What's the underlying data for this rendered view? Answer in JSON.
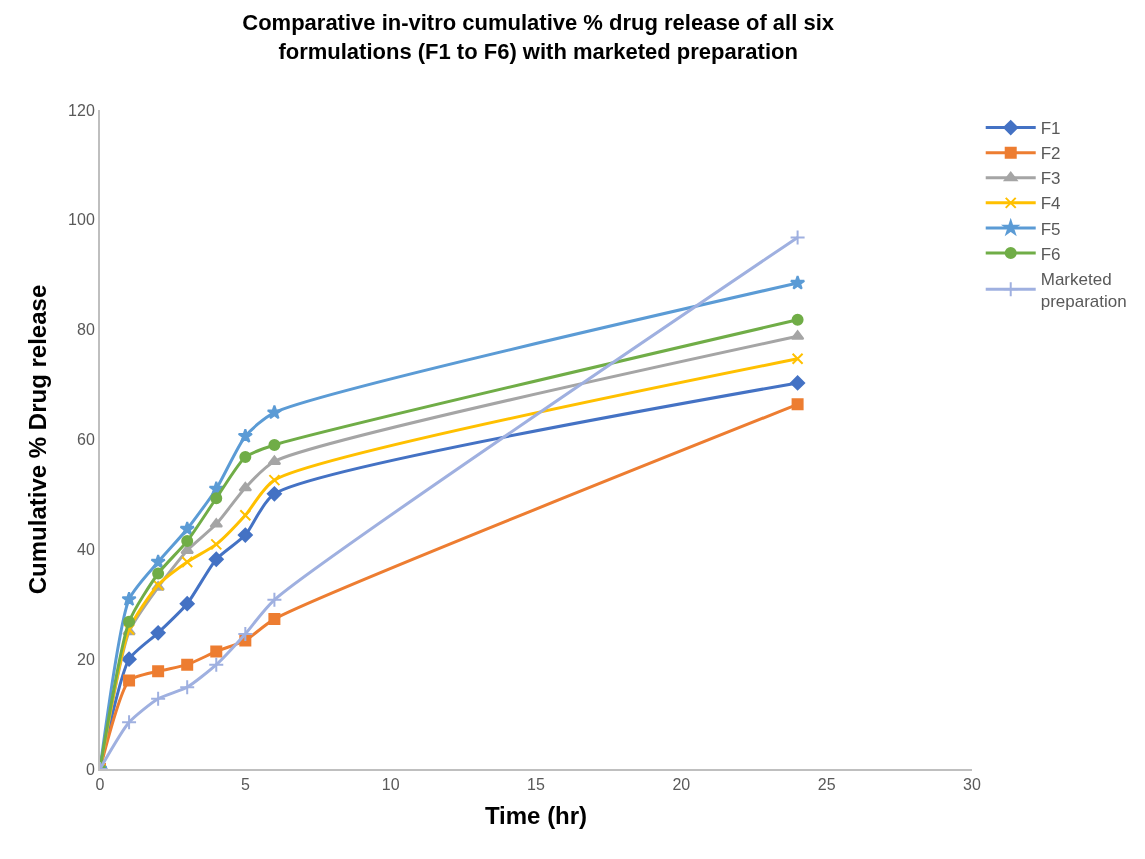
{
  "chart_data": {
    "type": "line",
    "title": "Comparative in-vitro cumulative % drug release of all six formulations (F1 to F6) with marketed preparation",
    "xlabel": "Time (hr)",
    "ylabel": "Cumulative % Drug release",
    "x": [
      0,
      1,
      2,
      3,
      4,
      5,
      6,
      24
    ],
    "series": [
      {
        "name": "F1",
        "color": "#4472c4",
        "marker": "diamond",
        "values": [
          0,
          20.0,
          24.8,
          30.1,
          38.2,
          42.6,
          50.1,
          70.3
        ]
      },
      {
        "name": "F2",
        "color": "#ed7d31",
        "marker": "square",
        "values": [
          0,
          16.1,
          17.8,
          19.0,
          21.4,
          23.4,
          27.3,
          66.4
        ]
      },
      {
        "name": "F3",
        "color": "#a5a5a5",
        "marker": "triangle",
        "values": [
          0,
          25.0,
          33.1,
          39.8,
          44.6,
          51.2,
          56.0,
          78.8
        ]
      },
      {
        "name": "F4",
        "color": "#ffc000",
        "marker": "x",
        "values": [
          0,
          25.4,
          33.5,
          37.7,
          40.9,
          46.2,
          52.6,
          74.7
        ]
      },
      {
        "name": "F5",
        "color": "#5b9bd5",
        "marker": "star",
        "values": [
          0,
          30.9,
          37.7,
          43.7,
          51.0,
          60.6,
          64.9,
          88.5
        ]
      },
      {
        "name": "F6",
        "color": "#70ad47",
        "marker": "circle",
        "values": [
          0,
          26.8,
          35.6,
          41.5,
          49.3,
          56.8,
          59.0,
          81.8
        ]
      },
      {
        "name": "Marketed preparation",
        "color": "#9fb0e0",
        "marker": "cross",
        "values": [
          0,
          8.5,
          12.8,
          14.9,
          19.0,
          24.6,
          30.8,
          96.8
        ]
      }
    ],
    "xlim": [
      0,
      30
    ],
    "xticks": [
      0,
      5,
      10,
      15,
      20,
      25,
      30
    ],
    "ylim": [
      0,
      120
    ],
    "yticks": [
      0,
      20,
      40,
      60,
      80,
      100,
      120
    ],
    "grid": false,
    "legend": "right",
    "line_style": "solid"
  }
}
